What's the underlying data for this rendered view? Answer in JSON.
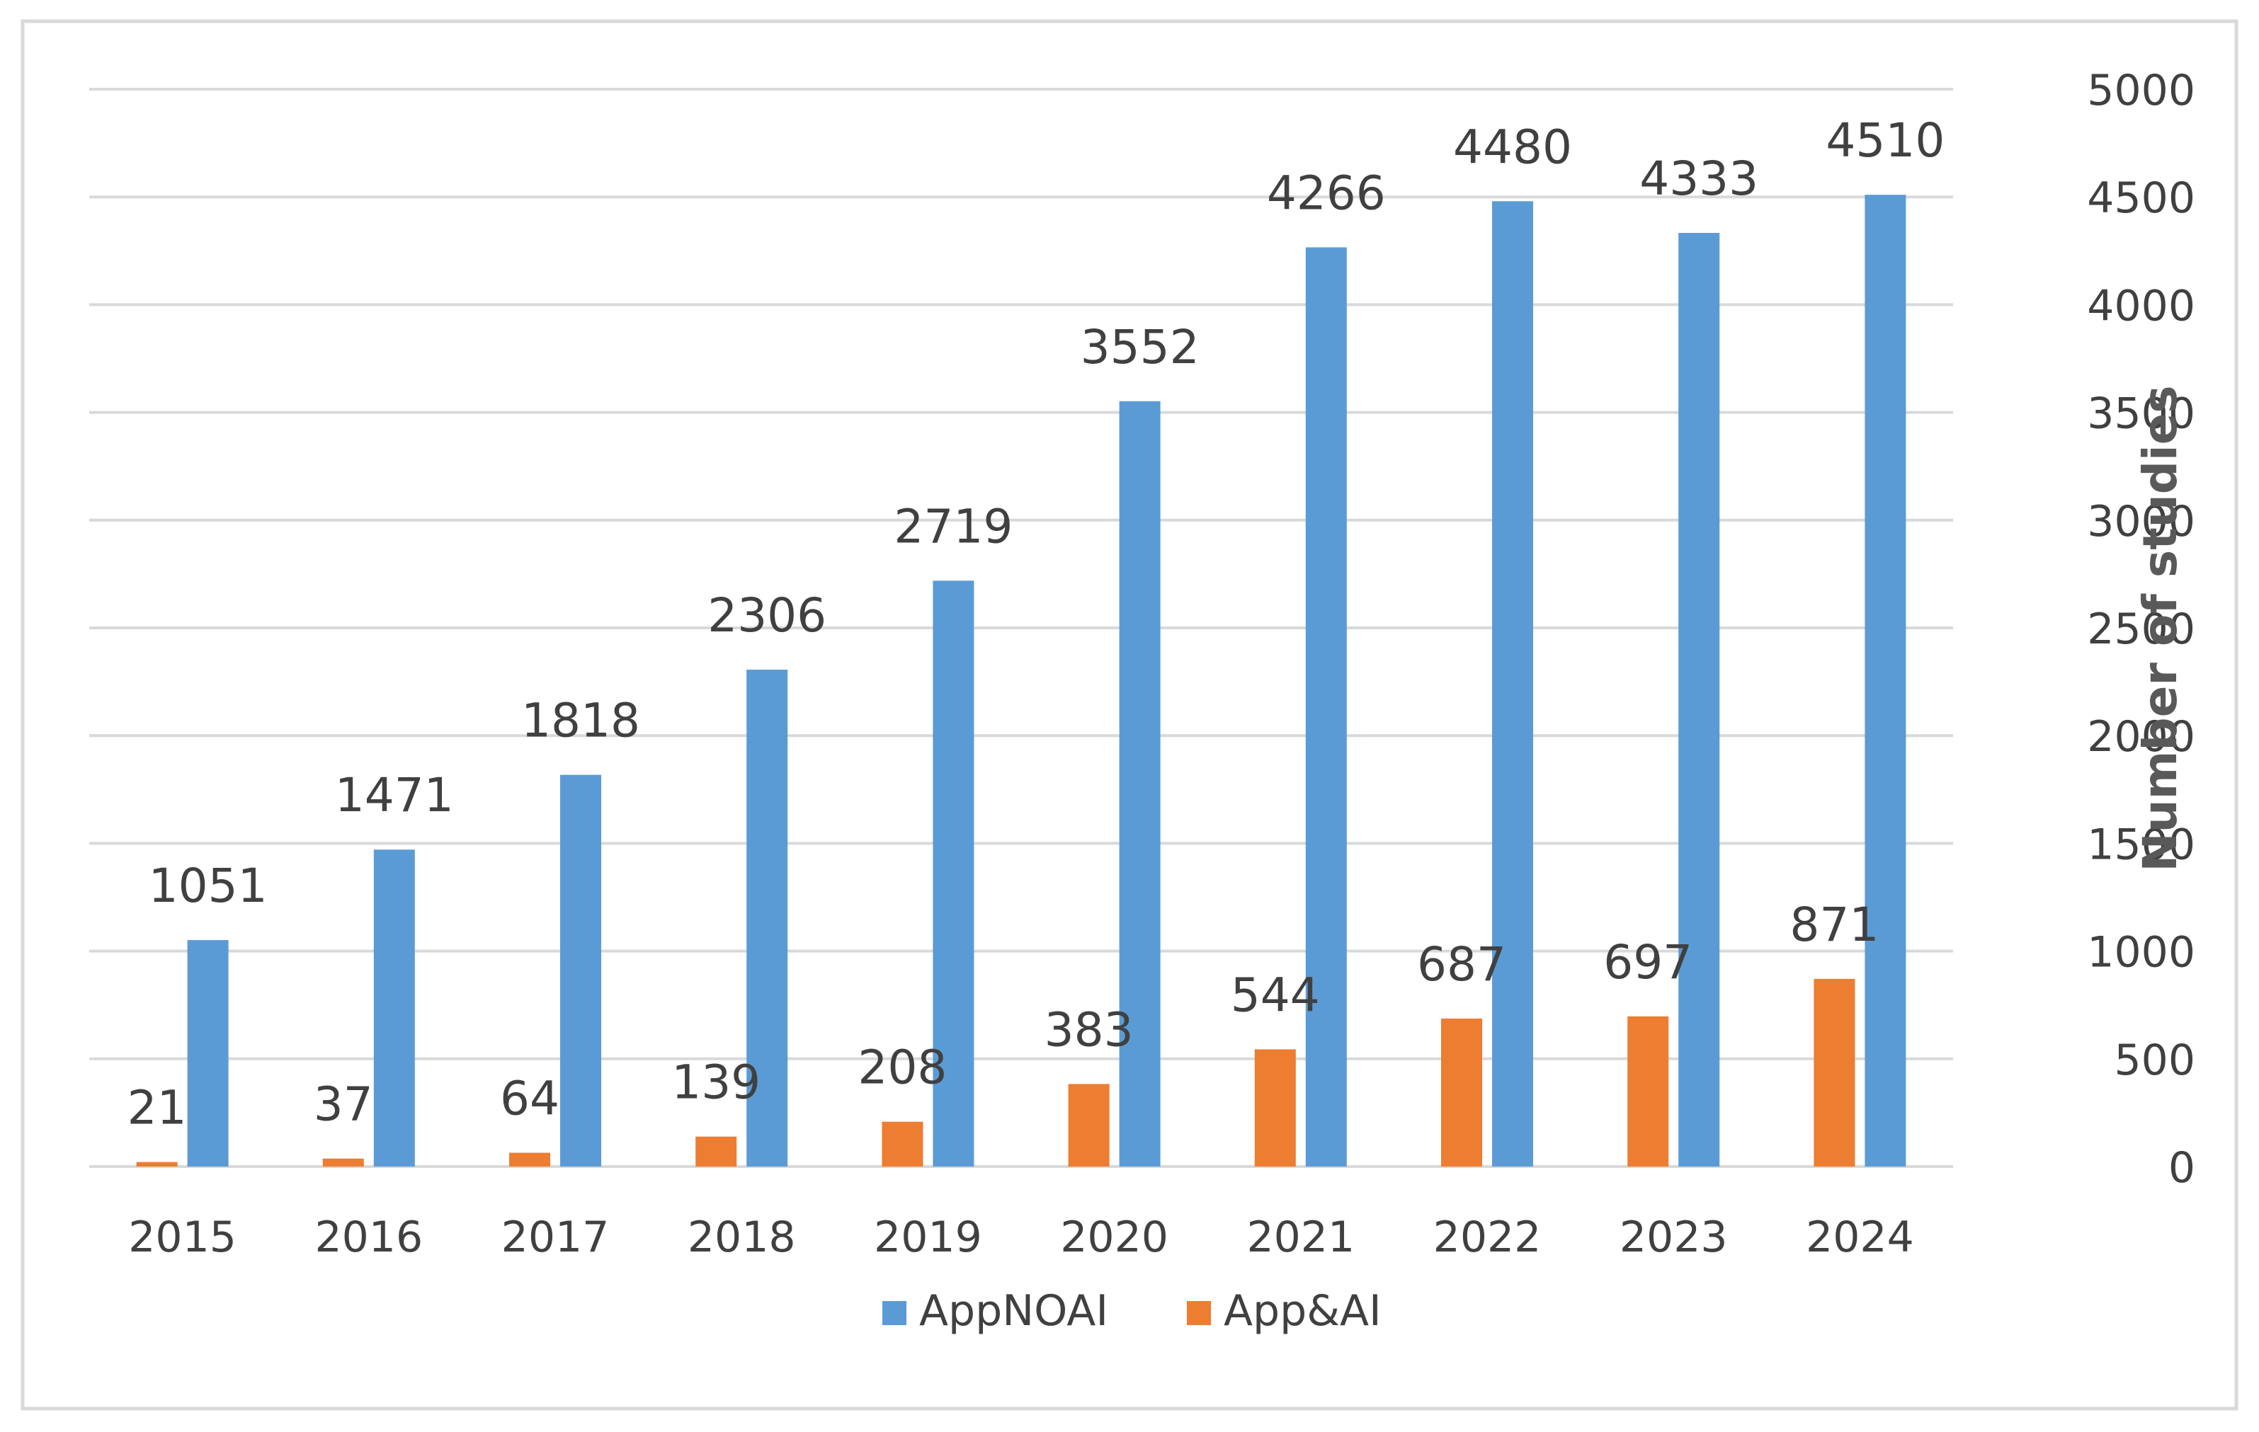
{
  "chart_data": {
    "type": "bar",
    "title": "",
    "xlabel": "",
    "ylabel": "Number of studies",
    "ylim": [
      0,
      5000
    ],
    "yticks": [
      0,
      500,
      1000,
      1500,
      2000,
      2500,
      3000,
      3500,
      4000,
      4500,
      5000
    ],
    "ytick_labels": [
      "0",
      "500",
      "1000",
      "1500",
      "2000",
      "2500",
      "3000",
      "3500",
      "4000",
      "4500",
      "5000"
    ],
    "y_axis_side": "right",
    "grid": true,
    "legend_position": "bottom",
    "categories": [
      "2015",
      "2016",
      "2017",
      "2018",
      "2019",
      "2020",
      "2021",
      "2022",
      "2023",
      "2024"
    ],
    "series": [
      {
        "name": "App&AI",
        "color": "#ED7D31",
        "values": [
          21,
          37,
          64,
          139,
          208,
          383,
          544,
          687,
          697,
          871
        ],
        "labels": [
          "21",
          "37",
          "64",
          "139",
          "208",
          "383",
          "544",
          "687",
          "697",
          "871"
        ]
      },
      {
        "name": "AppNOAI",
        "color": "#5B9BD5",
        "values": [
          1051,
          1471,
          1818,
          2306,
          2719,
          3552,
          4266,
          4480,
          4333,
          4510
        ],
        "labels": [
          "1051",
          "1471",
          "1818",
          "2306",
          "2719",
          "3552",
          "4266",
          "4480",
          "4333",
          "4510"
        ]
      }
    ],
    "legend": [
      {
        "name": "AppNOAI",
        "color": "#5B9BD5"
      },
      {
        "name": "App&AI",
        "color": "#ED7D31"
      }
    ],
    "colors": {
      "grid": "#D9D9D9",
      "text": "#404040",
      "axis_title": "#595959",
      "frame": "#D9D9D9"
    }
  }
}
